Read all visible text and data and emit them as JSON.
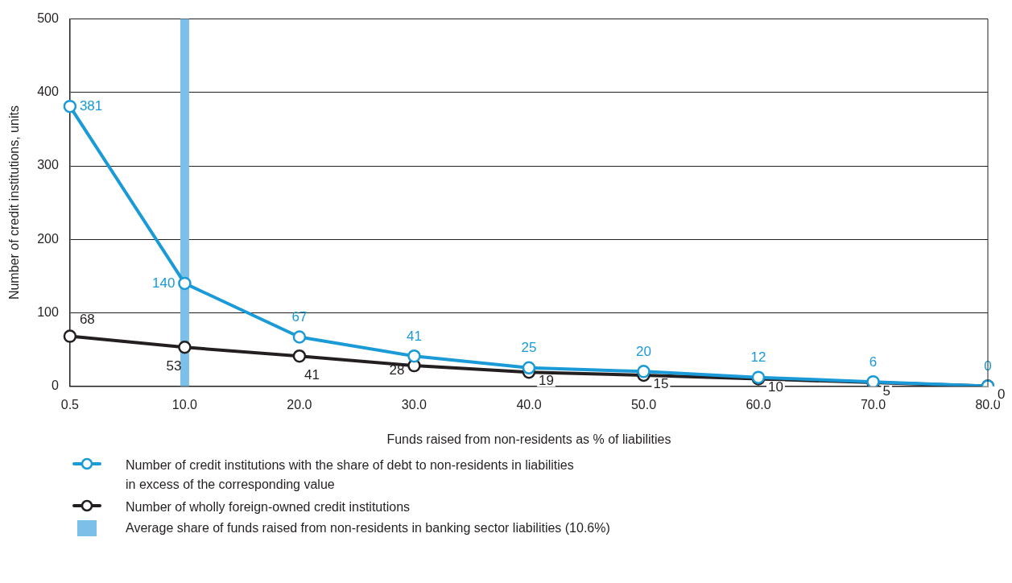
{
  "chart_data": {
    "type": "line",
    "xlabel": "Funds raised from non-residents as % of liabilities",
    "ylabel": "Number of credit institutions, units",
    "categories": [
      "0.5",
      "10.0",
      "20.0",
      "30.0",
      "40.0",
      "50.0",
      "60.0",
      "70.0",
      "80.0"
    ],
    "series": [
      {
        "name": "Number of credit institutions with the share of debt to non-residents in liabilities in excess of the corresponding value",
        "color": "#1a9ad6",
        "values": [
          381,
          140,
          67,
          41,
          25,
          20,
          12,
          6,
          0
        ]
      },
      {
        "name": "Number of wholly foreign-owned credit institutions",
        "color": "#231f20",
        "values": [
          68,
          53,
          41,
          28,
          19,
          15,
          10,
          5,
          0
        ]
      }
    ],
    "ref_lines": [
      {
        "axis": "x",
        "value": "10.0",
        "label": "Average share of funds raised from non-residents in banking sector liabilities (10.6%)",
        "color": "#7cbfe9"
      }
    ],
    "ylim": [
      0,
      500
    ],
    "yticks": [
      0,
      100,
      200,
      300,
      400,
      500
    ],
    "grid": "y",
    "legend": "bottom",
    "marker": "circle",
    "line_style": "solid",
    "data_labels": true
  }
}
